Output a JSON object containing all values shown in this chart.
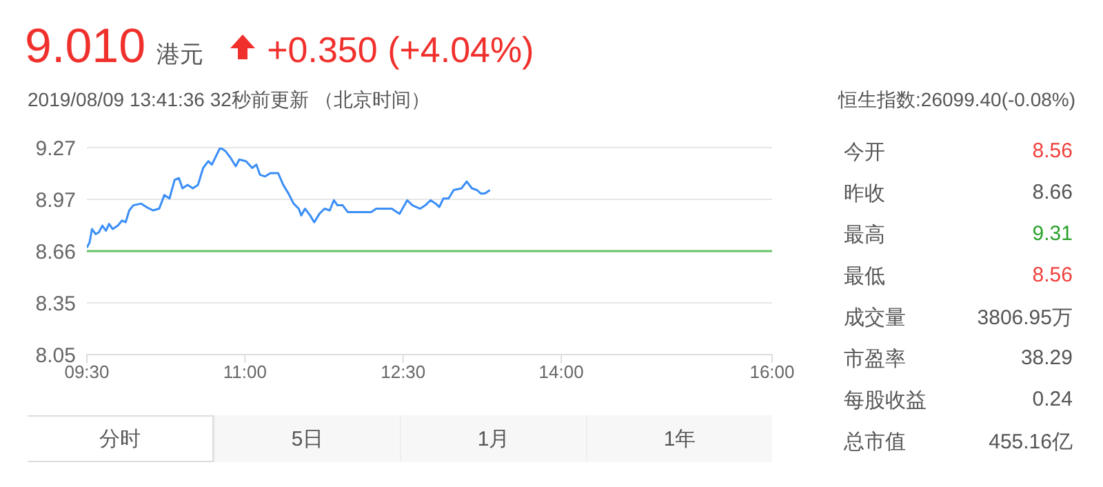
{
  "chart_data": {
    "type": "line",
    "title": "9.010",
    "subtitle": "2019/08/09 13:41:36   32秒前更新 （北京时间）",
    "annotations": [
      "港元",
      "+0.350 (+4.04%)",
      "恒生指数:26099.40(-0.08%)",
      "今开",
      "8.56",
      "昨收",
      "8.66",
      "最高",
      "9.31",
      "最低",
      "8.56",
      "成交量",
      "3806.95万",
      "市盈率",
      "38.29",
      "每股收益",
      "0.24",
      "总市值",
      "455.16亿",
      "分时",
      "5日",
      "1月",
      "1年"
    ],
    "x": [
      9.5,
      9.525,
      9.549,
      9.583,
      9.613,
      9.647,
      9.681,
      9.711,
      9.745,
      9.794,
      9.833,
      9.868,
      9.902,
      9.941,
      10.015,
      10.064,
      10.127,
      10.186,
      10.235,
      10.284,
      10.333,
      10.373,
      10.407,
      10.456,
      10.505,
      10.554,
      10.603,
      10.652,
      10.686,
      10.725,
      10.765,
      10.814,
      10.863,
      10.912,
      10.946,
      11.01,
      11.069,
      11.108,
      11.142,
      11.191,
      11.24,
      11.314,
      11.363,
      11.412,
      11.461,
      11.51,
      11.534,
      11.569,
      11.618,
      11.657,
      11.706,
      11.755,
      11.804,
      11.843,
      11.877,
      11.926,
      11.975,
      12.098,
      12.196,
      12.245,
      12.319,
      12.392,
      12.466,
      12.539,
      12.588,
      12.662,
      12.711,
      12.76,
      12.809,
      12.843,
      12.882,
      12.931,
      12.98,
      13.054,
      13.103,
      13.152,
      13.201,
      13.235,
      13.275,
      13.324
    ],
    "series": [
      {
        "color": "#3a8ef6",
        "values": [
          8.68,
          8.71,
          8.79,
          8.76,
          8.77,
          8.81,
          8.78,
          8.82,
          8.79,
          8.81,
          8.84,
          8.83,
          8.9,
          8.93,
          8.94,
          8.92,
          8.9,
          8.91,
          8.99,
          8.97,
          9.08,
          9.09,
          9.03,
          9.05,
          9.03,
          9.05,
          9.15,
          9.19,
          9.17,
          9.22,
          9.27,
          9.25,
          9.21,
          9.16,
          9.2,
          9.19,
          9.15,
          9.17,
          9.11,
          9.1,
          9.12,
          9.12,
          9.05,
          9,
          8.94,
          8.91,
          8.87,
          8.91,
          8.87,
          8.83,
          8.88,
          8.91,
          8.9,
          8.96,
          8.93,
          8.93,
          8.89,
          8.89,
          8.89,
          8.91,
          8.91,
          8.91,
          8.88,
          8.96,
          8.93,
          8.91,
          8.93,
          8.96,
          8.94,
          8.92,
          8.97,
          8.97,
          9.02,
          9.03,
          9.07,
          9.03,
          9.02,
          9,
          9,
          9.02
        ]
      }
    ],
    "xlim": [
      9.5,
      16
    ],
    "xticks": [
      {
        "value": 9.5,
        "label": "09:30"
      },
      {
        "value": 11,
        "label": "11:00"
      },
      {
        "value": 12.5,
        "label": "12:30"
      },
      {
        "value": 14,
        "label": "14:00"
      },
      {
        "value": 16,
        "label": "16:00"
      }
    ],
    "ylim": [
      8.05,
      9.27
    ],
    "yticks": [
      8.05,
      {
        "value": 8.355,
        "label": "8.35"
      },
      8.66,
      {
        "value": 8.965,
        "label": "8.97"
      },
      9.27
    ],
    "ref_lines": [
      {
        "axis": "y",
        "value": 8.66,
        "color": "#66c266"
      }
    ],
    "grid": "y",
    "marker": "none",
    "line_style": "solid"
  }
}
